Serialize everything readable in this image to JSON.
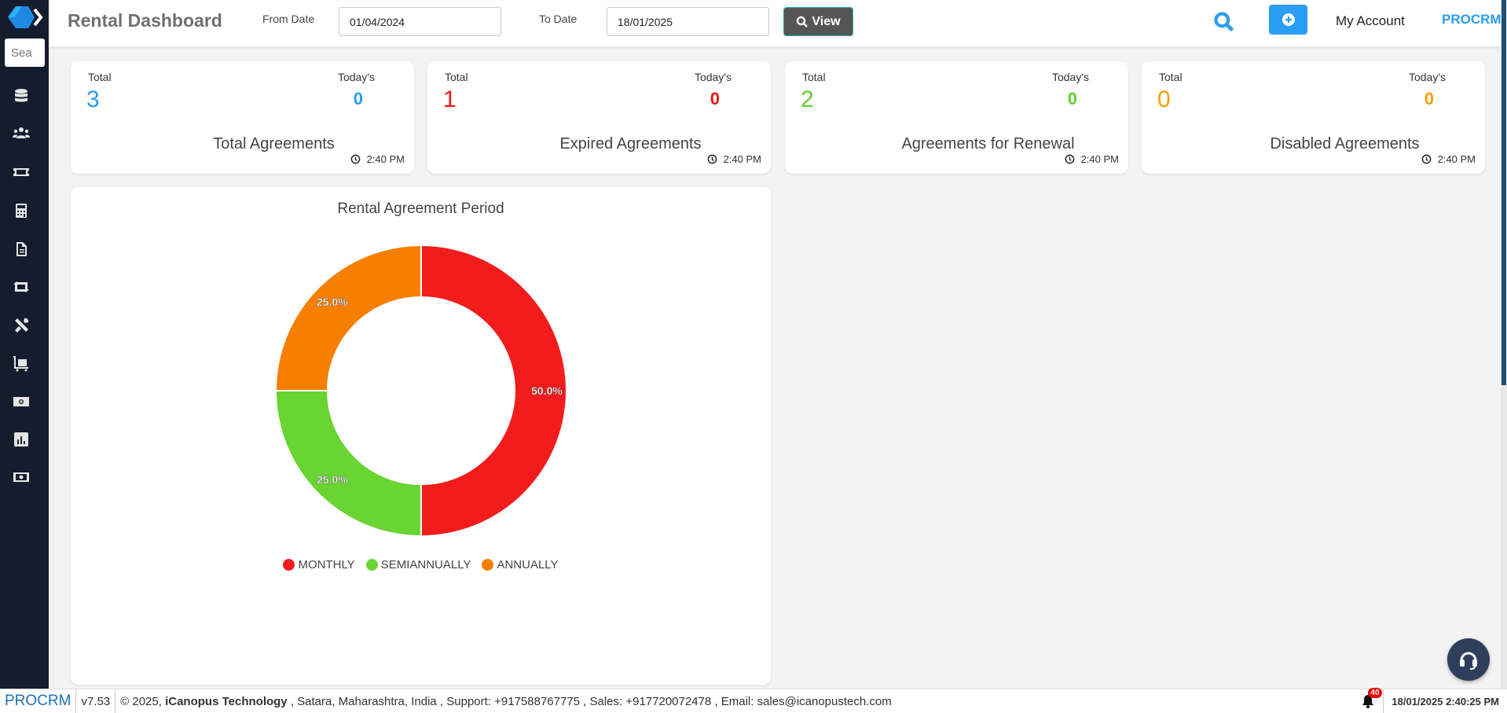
{
  "sidebar": {
    "search_placeholder": "Sea",
    "icons": [
      "database-icon",
      "users-icon",
      "ticket-icon",
      "calculator-icon",
      "document-icon",
      "retweet-icon",
      "tools-icon",
      "luggage-cart-icon",
      "money-bill-icon",
      "chart-bar-icon",
      "money-icon"
    ]
  },
  "header": {
    "title": "Rental Dashboard",
    "from_label": "From Date",
    "from_value": "01/04/2024",
    "to_label": "To Date",
    "to_value": "18/01/2025",
    "view_label": "View",
    "my_account": "My Account",
    "brand": "PROCRM"
  },
  "cards": [
    {
      "total_label": "Total",
      "today_label": "Today's",
      "total": "3",
      "today": "0",
      "name": "Total Agreements",
      "time": "2:40 PM",
      "color": "#2a9df4"
    },
    {
      "total_label": "Total",
      "today_label": "Today's",
      "total": "1",
      "today": "0",
      "name": "Expired Agreements",
      "time": "2:40 PM",
      "color": "#f01414"
    },
    {
      "total_label": "Total",
      "today_label": "Today's",
      "total": "2",
      "today": "0",
      "name": "Agreements for Renewal",
      "time": "2:40 PM",
      "color": "#66d02e"
    },
    {
      "total_label": "Total",
      "today_label": "Today's",
      "total": "0",
      "today": "0",
      "name": "Disabled Agreements",
      "time": "2:40 PM",
      "color": "#f5a000"
    }
  ],
  "chart_data": {
    "type": "pie",
    "variant": "donut",
    "title": "Rental Agreement Period",
    "categories": [
      "MONTHLY",
      "SEMIANNUALLY",
      "ANNUALLY"
    ],
    "values": [
      50.0,
      25.0,
      25.0
    ],
    "labels": [
      "50.0%",
      "25.0%",
      "25.0%"
    ],
    "colors": [
      "#f21c1c",
      "#69d432",
      "#f77f00"
    ],
    "legend": "bottom"
  },
  "footer": {
    "brand": "PROCRM",
    "version": "v7.53",
    "copyright": "© 2025, ",
    "company": "iCanopus Technology",
    "info": " , Satara, Maharashtra, India , Support: +917588767775 , Sales: +917720072478 , Email: sales@icanopustech.com",
    "notifications": "40",
    "datetime": "18/01/2025 2:40:25 PM"
  }
}
